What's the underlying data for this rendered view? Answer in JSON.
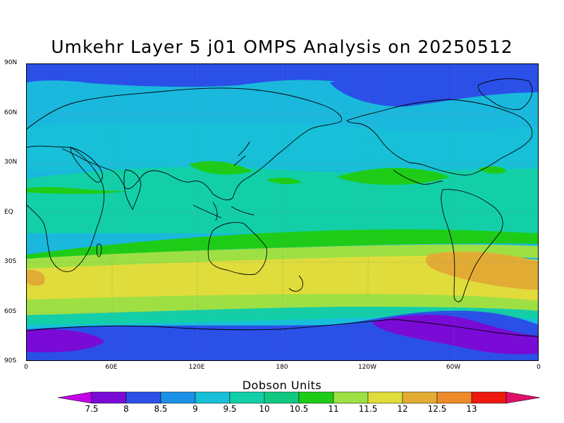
{
  "title": "Umkehr Layer 5 j01 OMPS Analysis on 20250512",
  "lat_labels": [
    "90N",
    "60N",
    "30N",
    "EQ",
    "30S",
    "60S",
    "90S"
  ],
  "lon_labels": [
    "0",
    "60E",
    "120E",
    "180",
    "120W",
    "60W",
    "0"
  ],
  "colorbar": {
    "title": "Dobson Units",
    "labels": [
      "7.5",
      "8",
      "8.5",
      "9",
      "9.5",
      "10",
      "10.5",
      "11",
      "11.5",
      "12",
      "12.5",
      "13"
    ],
    "colors": [
      "#c400e6",
      "#7a0ad6",
      "#2a50e8",
      "#1a90e6",
      "#17c0d8",
      "#12cfa8",
      "#12c880",
      "#1ecc18",
      "#9ee044",
      "#e0dc3c",
      "#e2ac34",
      "#ee8a2a",
      "#ee1a10",
      "#e0106a"
    ]
  },
  "map": {
    "projection": "cylindrical-equidistant",
    "lon_range": [
      0,
      360
    ],
    "lat_range": [
      -90,
      90
    ],
    "gridlines": "dotted"
  }
}
